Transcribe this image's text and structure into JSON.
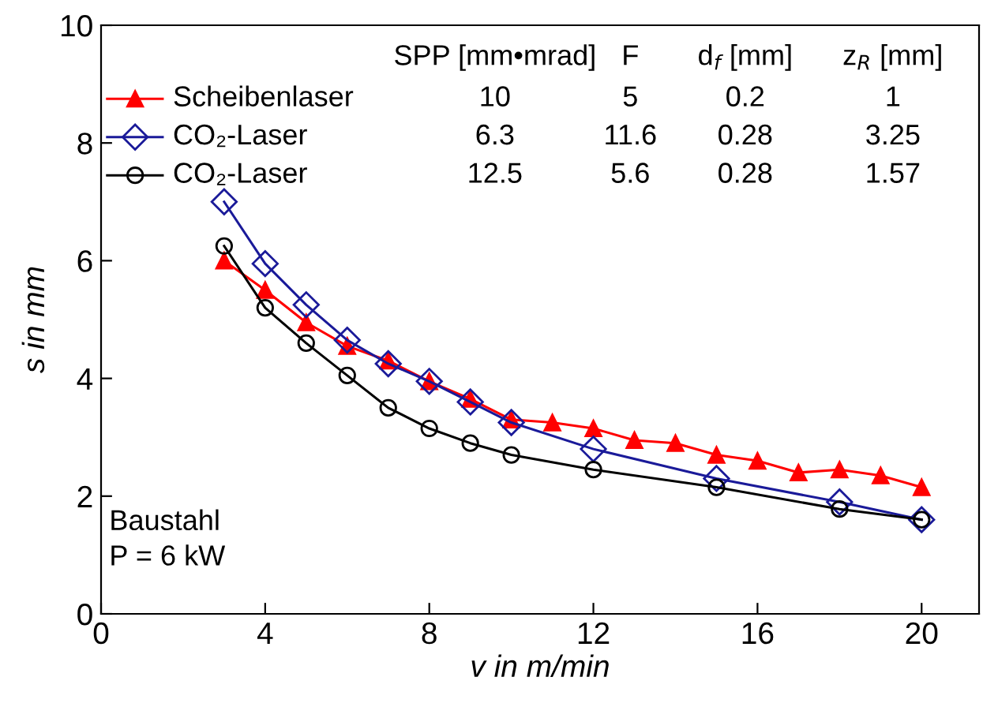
{
  "chart_data": {
    "type": "line",
    "xlabel": "v in m/min",
    "ylabel": "s in mm",
    "xlim": [
      0,
      21.4
    ],
    "ylim": [
      0,
      10
    ],
    "xticks": [
      0,
      4,
      8,
      12,
      16,
      20
    ],
    "yticks": [
      0,
      2,
      4,
      6,
      8,
      10
    ],
    "grid": false,
    "legend": "top left",
    "line_style": "solid",
    "series": [
      {
        "name": "Scheibenlaser",
        "color": "#ff0000",
        "marker": "triangle",
        "x": [
          3,
          4,
          5,
          6,
          7,
          8,
          9,
          10,
          11,
          12,
          13,
          14,
          15,
          16,
          17,
          18,
          19,
          20
        ],
        "values": [
          6.0,
          5.5,
          4.95,
          4.55,
          4.3,
          3.95,
          3.65,
          3.3,
          3.25,
          3.15,
          2.95,
          2.9,
          2.7,
          2.6,
          2.4,
          2.45,
          2.35,
          2.15
        ]
      },
      {
        "name": "CO₂-Laser",
        "color": "#1a1a99",
        "marker": "diamond",
        "x": [
          3,
          4,
          5,
          6,
          7,
          8,
          9,
          10,
          12,
          15,
          18,
          20
        ],
        "values": [
          7.0,
          5.95,
          5.25,
          4.65,
          4.25,
          3.95,
          3.6,
          3.25,
          2.8,
          2.3,
          1.9,
          1.6
        ]
      },
      {
        "name": "CO₂-Laser",
        "color": "#000000",
        "marker": "circle",
        "x": [
          3,
          4,
          5,
          6,
          7,
          8,
          9,
          10,
          12,
          15,
          18,
          20
        ],
        "values": [
          6.25,
          5.2,
          4.6,
          4.05,
          3.5,
          3.15,
          2.9,
          2.7,
          2.45,
          2.15,
          1.78,
          1.6
        ]
      }
    ],
    "annotations": [
      "SPP [mm•mrad]",
      "F",
      "d$_{f}$ [mm]",
      "z$_{R}$ [mm]",
      "10",
      "5",
      "0.2",
      "1",
      "6.3",
      "11.6",
      "0.28",
      "3.25",
      "12.5",
      "5.6",
      "0.28",
      "1.57",
      "Baustahl",
      "P = 6 kW"
    ]
  }
}
